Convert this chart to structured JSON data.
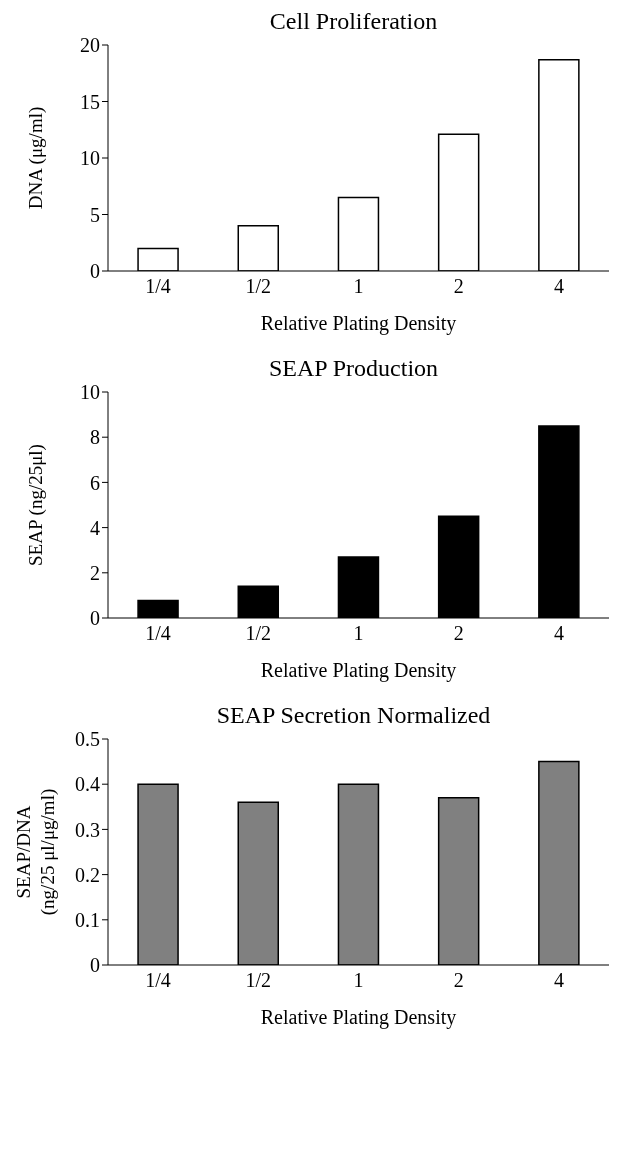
{
  "chart_data": [
    {
      "type": "bar",
      "title": "Cell Proliferation",
      "xlabel": "Relative Plating Density",
      "ylabel": "DNA (μg/ml)",
      "categories": [
        "1/4",
        "1/2",
        "1",
        "2",
        "4"
      ],
      "values": [
        2,
        4,
        6.5,
        12.1,
        18.7
      ],
      "color": "#ffffff",
      "ylim": [
        0,
        20
      ],
      "yticks": [
        0,
        5,
        10,
        15,
        20
      ],
      "grid": false,
      "legend": false
    },
    {
      "type": "bar",
      "title": "SEAP Production",
      "xlabel": "Relative Plating Density",
      "ylabel": "SEAP (ng/25μl)",
      "categories": [
        "1/4",
        "1/2",
        "1",
        "2",
        "4"
      ],
      "values": [
        0.77,
        1.4,
        2.7,
        4.5,
        8.5
      ],
      "color": "#000000",
      "ylim": [
        0,
        10
      ],
      "yticks": [
        0,
        2,
        4,
        6,
        8,
        10
      ],
      "grid": false,
      "legend": false
    },
    {
      "type": "bar",
      "title": "SEAP Secretion Normalized",
      "xlabel": "Relative Plating Density",
      "ylabel": "SEAP/DNA\n(ng/25 μl/μg/ml)",
      "categories": [
        "1/4",
        "1/2",
        "1",
        "2",
        "4"
      ],
      "values": [
        0.4,
        0.36,
        0.4,
        0.37,
        0.45
      ],
      "color": "#808080",
      "ylim": [
        0,
        0.5
      ],
      "yticks": [
        0,
        0.1,
        0.2,
        0.3,
        0.4,
        0.5
      ],
      "grid": false,
      "legend": false
    }
  ]
}
